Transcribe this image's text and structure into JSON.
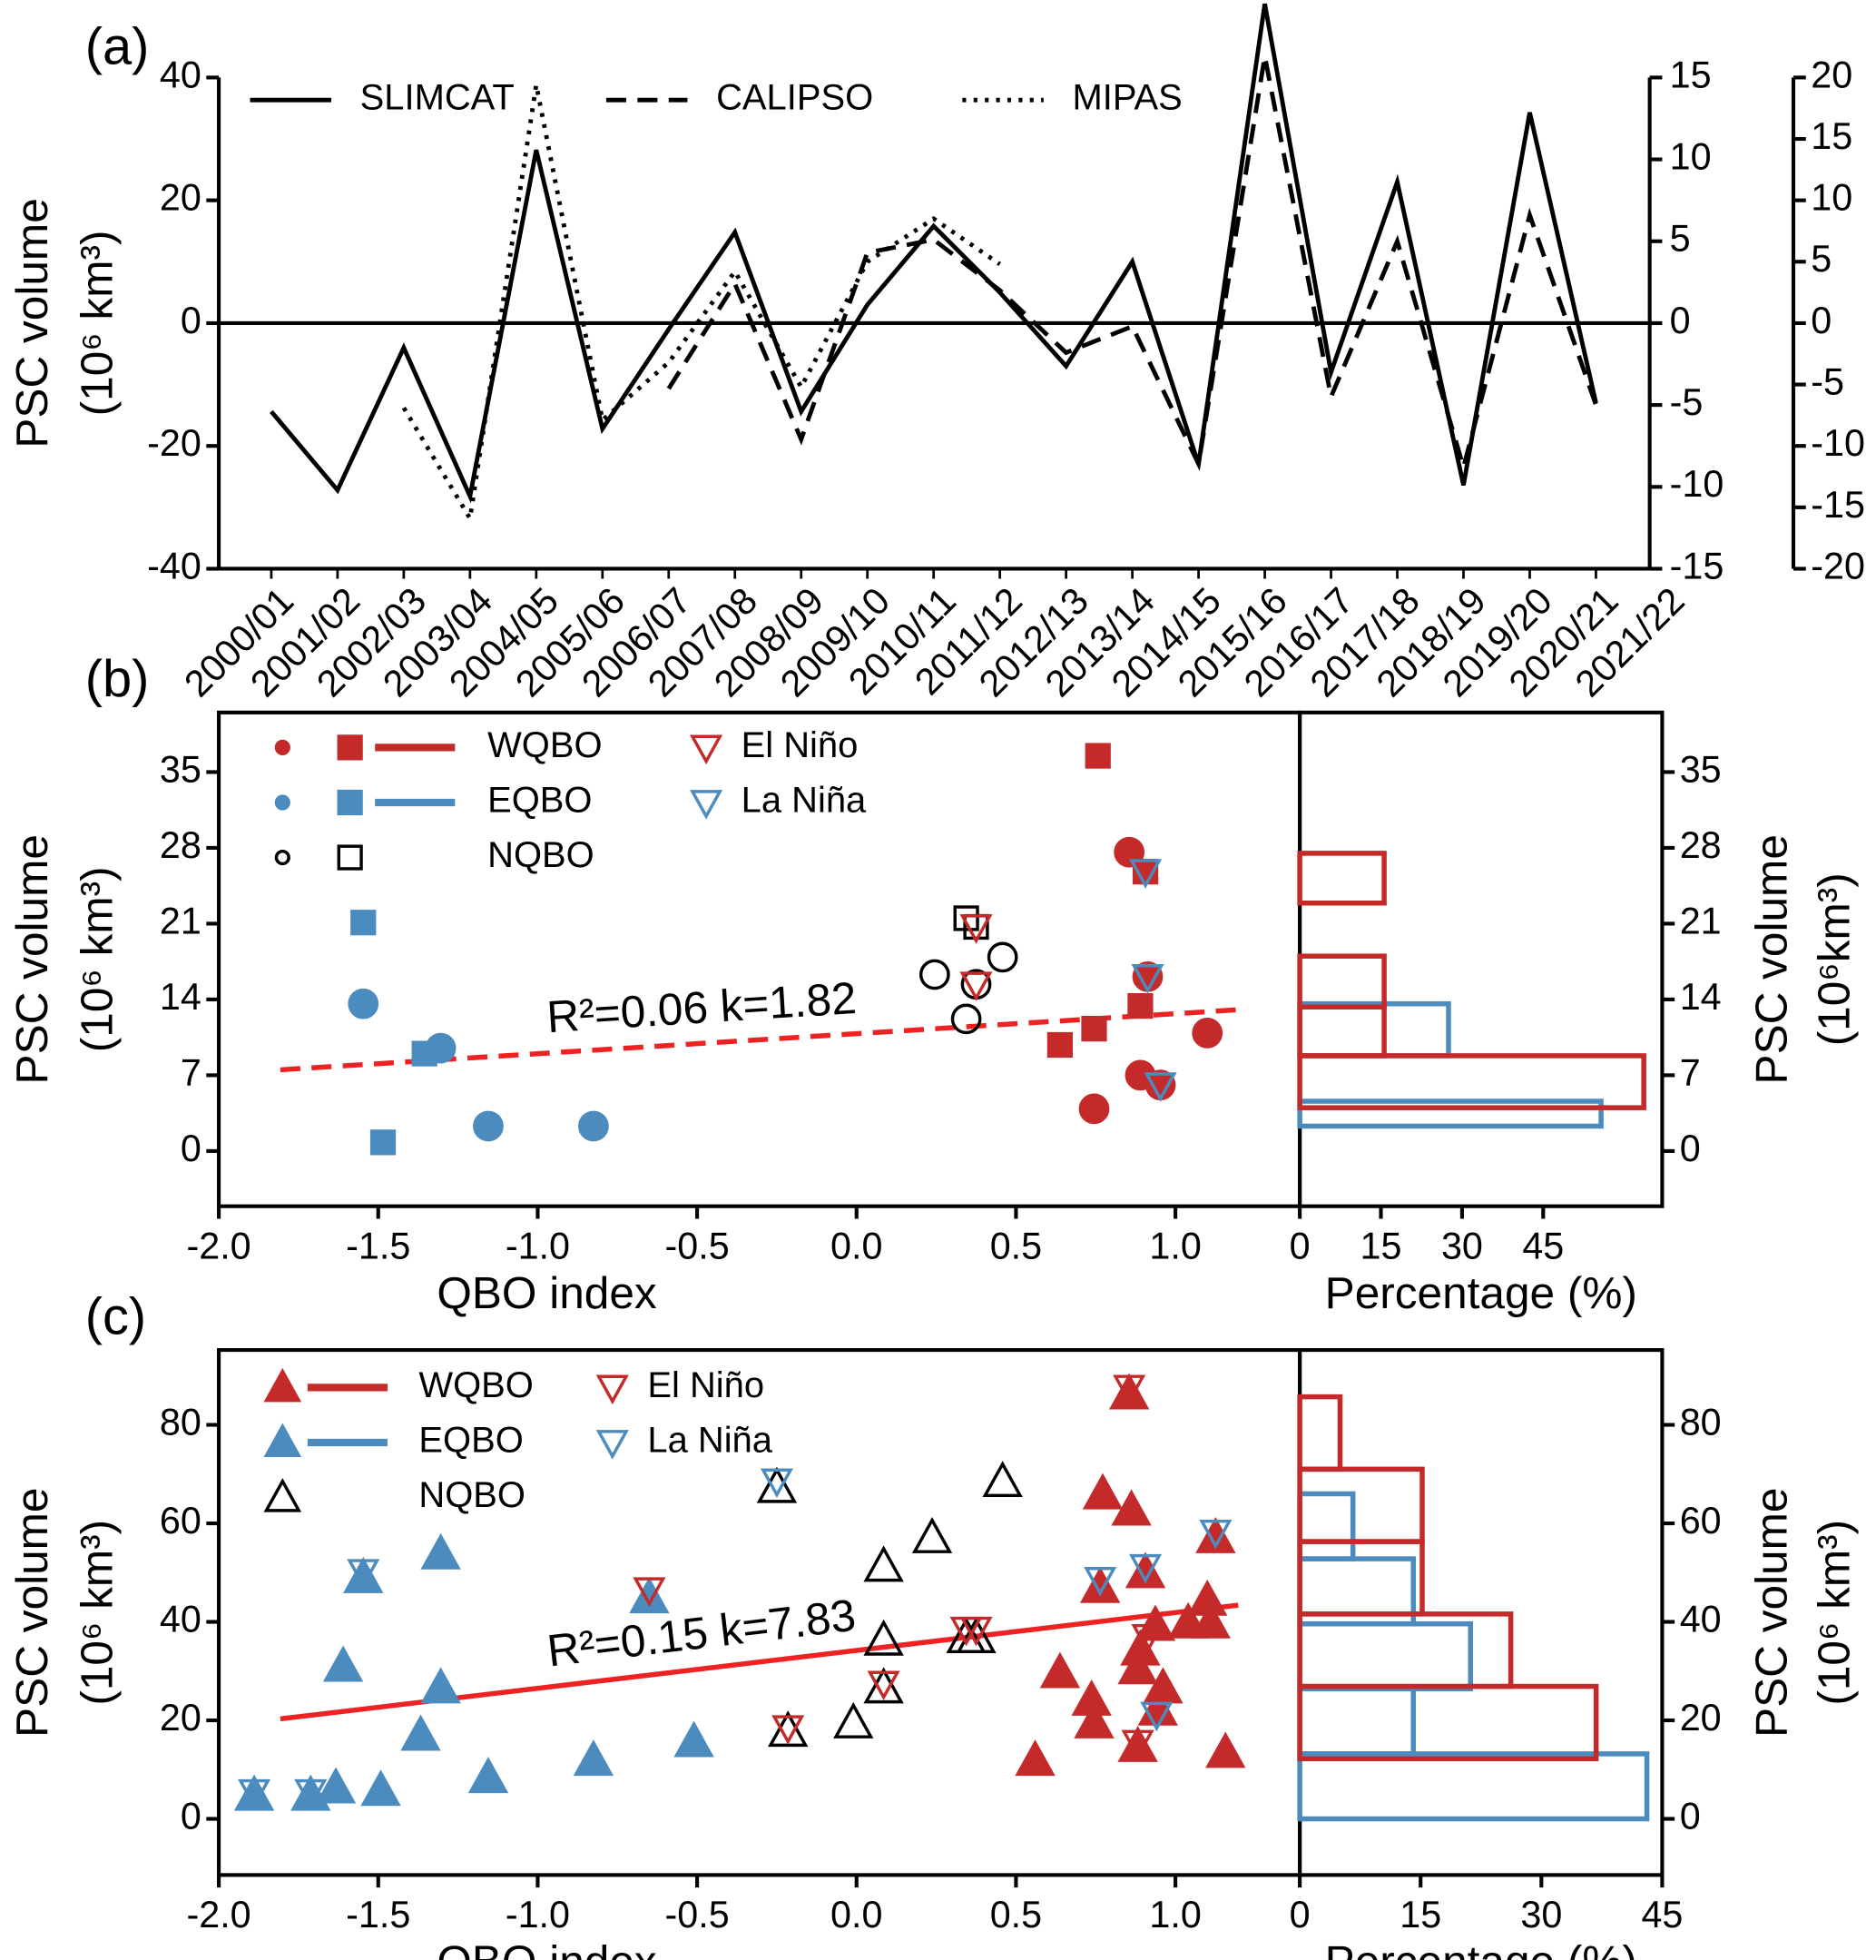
{
  "chart_data": [
    {
      "type": "line",
      "panel_label": "(a)",
      "ylabel": [
        "PSC volume",
        "(10⁶ km³)"
      ],
      "categories": [
        "2000/01",
        "2001/02",
        "2002/03",
        "2003/04",
        "2004/05",
        "2005/06",
        "2006/07",
        "2007/08",
        "2008/09",
        "2009/10",
        "2010/11",
        "2011/12",
        "2012/13",
        "2013/14",
        "2014/15",
        "2015/16",
        "2016/17",
        "2017/18",
        "2018/19",
        "2019/20",
        "2020/21",
        "2021/22"
      ],
      "category_colors": [
        "#000000",
        "#4b8bbe",
        "#c52a2a",
        "#4b8bbe",
        "#c52a2a",
        "#4b8bbe",
        "#c52a2a",
        "#4b8bbe",
        "#c52a2a",
        "#000000",
        "#c52a2a",
        "#000000",
        "#4b8bbe",
        "#c52a2a",
        "#4b8bbe",
        "#c52a2a",
        "#c52a2a",
        "#000000",
        "#4b8bbe",
        "#000000",
        "#c52a2a",
        "#000000"
      ],
      "ylim": [
        -40,
        40
      ],
      "yticks": [
        -40,
        -20,
        0,
        20,
        40
      ],
      "y2lim": [
        -15,
        15
      ],
      "y2ticks": [
        -15,
        -10,
        -5,
        0,
        5,
        10,
        15
      ],
      "y3lim": [
        -20,
        20
      ],
      "y3ticks": [
        -20,
        -15,
        -10,
        -5,
        0,
        5,
        10,
        15,
        20
      ],
      "zero_line": true,
      "series": [
        {
          "name": "SLIMCAT",
          "color": "#000000",
          "dash": "solid",
          "values": [
            -14.4,
            -27.2,
            -4,
            -28.2,
            28.2,
            -17.2,
            -1,
            14.8,
            -14.4,
            3,
            15.8,
            5,
            -7,
            10,
            -23,
            52,
            -8,
            23,
            -26.4,
            34.3,
            -13,
            null
          ]
        },
        {
          "name": "CALIPSO",
          "color": "#000000",
          "dash": "dashed",
          "axis": "y2",
          "values": [
            null,
            null,
            null,
            null,
            null,
            null,
            -4,
            2.4,
            -7.1,
            4.3,
            5.1,
            2,
            -1.8,
            -0.2,
            -8.6,
            16.3,
            -4.5,
            5,
            -8.8,
            6.6,
            -5,
            null
          ]
        },
        {
          "name": "MIPAS",
          "color": "#000000",
          "dash": "dotted",
          "axis": "y3",
          "values": [
            null,
            null,
            -6.9,
            -15.9,
            19.4,
            -7.9,
            -3.2,
            4.2,
            -5.2,
            5,
            8.5,
            4.8,
            null,
            null,
            null,
            null,
            null,
            null,
            null,
            null,
            null,
            null
          ]
        }
      ]
    },
    {
      "type": "scatter",
      "panel_label": "(b)",
      "xlabel": "QBO index",
      "ylabel": [
        "PSC volume",
        "(10⁶ km³)"
      ],
      "y2label": [
        "PSC volume",
        "(10⁶km³)"
      ],
      "xlim": [
        -2,
        1.39
      ],
      "xticks": [
        {
          "value": -2,
          "label": "-2.0"
        },
        -1.5,
        {
          "value": -1,
          "label": "-1.0"
        },
        -0.5,
        {
          "value": 0,
          "label": "0.0"
        },
        0.5,
        {
          "value": 1,
          "label": "1.0"
        }
      ],
      "ylim": [
        -5.1,
        40.5
      ],
      "yticks": [
        0,
        7,
        14,
        21,
        28,
        35
      ],
      "series": [
        {
          "name": "WQBO",
          "color": "#c52a2a",
          "filled": true,
          "legend_line": true,
          "markers": {
            "circle": {
              "x": [
                0.855,
                0.913,
                1.1,
                0.89,
                0.953,
                0.745
              ],
              "y": [
                27.6,
                16.1,
                10.9,
                7.0,
                6.1,
                3.9
              ]
            },
            "square": {
              "x": [
                0.757,
                0.906,
                0.89,
                0.745,
                0.638
              ],
              "y": [
                36.5,
                25.8,
                13.4,
                11.3,
                9.8
              ]
            }
          }
        },
        {
          "name": "EQBO",
          "color": "#4b8bbe",
          "filled": true,
          "legend_line": true,
          "markers": {
            "circle": {
              "x": [
                -1.547,
                -1.304,
                -1.155,
                -0.825
              ],
              "y": [
                13.6,
                9.5,
                2.3,
                2.3
              ]
            },
            "square": {
              "x": [
                -1.547,
                -1.355,
                -1.485
              ],
              "y": [
                21.1,
                9.0,
                0.8
              ]
            }
          }
        },
        {
          "name": "NQBO",
          "color": "#000000",
          "filled": false,
          "legend_line": false,
          "markers": {
            "circle": {
              "x": [
                0.245,
                0.458,
                0.375,
                0.344
              ],
              "y": [
                16.3,
                17.9,
                15.4,
                12.2
              ]
            },
            "square": {
              "x": [
                0.344,
                0.375
              ],
              "y": [
                21.5,
                20.7
              ]
            }
          }
        },
        {
          "name": "El Niño",
          "color": "#c52a2a",
          "filled": false,
          "legend_line": false,
          "markers": {
            "triangle_down": {
              "x": [
                0.375,
                0.375
              ],
              "y": [
                20.7,
                15.4
              ]
            }
          }
        },
        {
          "name": "La Niña",
          "color": "#4b8bbe",
          "filled": false,
          "legend_line": false,
          "markers": {
            "triangle_down": {
              "x": [
                0.906,
                0.913,
                0.953
              ],
              "y": [
                25.8,
                16.1,
                6.1
              ]
            }
          }
        }
      ],
      "fit": {
        "label": "R²=0.06  k=1.82",
        "color": "#ee2222",
        "dashed": true,
        "x": [
          -1.807,
          1.197
        ],
        "y": [
          7.5,
          13.05
        ]
      },
      "histogram": {
        "xlabel": "Percentage (%)",
        "xlim": [
          0,
          67
        ],
        "xticks": [
          0,
          15,
          30,
          45
        ],
        "series": [
          {
            "color": "#4b8bbe",
            "bins": [
              2.3,
              4.6,
              8.8,
              13.6
            ],
            "counts": [
              55.7,
              0,
              27.5
            ]
          },
          {
            "color": "#c52a2a",
            "bins": [
              4.0,
              8.8,
              13.3,
              18.0,
              22.9,
              27.5
            ],
            "counts": [
              63.6,
              15.6,
              15.6,
              0,
              15.6
            ]
          }
        ]
      }
    },
    {
      "type": "scatter",
      "panel_label": "(c)",
      "xlabel": "QBO index",
      "ylabel": [
        "PSC volume",
        "(10⁶ km³)"
      ],
      "y2label": [
        "PSC volume",
        "(10⁶ km³)"
      ],
      "xlim": [
        -2,
        1.39
      ],
      "xticks": [
        {
          "value": -2,
          "label": "-2.0"
        },
        -1.5,
        {
          "value": -1,
          "label": "-1.0"
        },
        -0.5,
        {
          "value": 0,
          "label": "0.0"
        },
        0.5,
        {
          "value": 1,
          "label": "1.0"
        }
      ],
      "ylim": [
        -11.4,
        95.2
      ],
      "yticks": [
        0,
        20,
        40,
        60,
        80
      ],
      "series": [
        {
          "name": "WQBO",
          "color": "#c52a2a",
          "filled": true,
          "legend_line": true,
          "markers": {
            "triangle_up": {
              "x": [
                0.855,
                0.772,
                0.862,
                0.764,
                0.906,
                0.937,
                0.89,
                0.882,
                0.961,
                0.945,
                0.638,
                0.737,
                0.745,
                0.56,
                0.882,
                1.04,
                1.1,
                1.11,
                1.126,
                1.157
              ],
              "y": [
                86.3,
                66,
                62.7,
                47,
                50,
                39.3,
                34.3,
                30.5,
                26.6,
                22.1,
                29.7,
                24.1,
                19.5,
                11.9,
                14.7,
                39.8,
                44.4,
                39.8,
                57.1,
                13.5
              ]
            }
          }
        },
        {
          "name": "EQBO",
          "color": "#4b8bbe",
          "filled": true,
          "legend_line": true,
          "markers": {
            "triangle_up": {
              "x": [
                -1.889,
                -1.712,
                -1.633,
                -1.492,
                -1.155,
                -0.825,
                -0.51,
                -1.367,
                -1.304,
                -1.61,
                -1.547,
                -1.304,
                -0.65
              ],
              "y": [
                4.8,
                4.8,
                6.3,
                5.8,
                8.4,
                11.9,
                15.7,
                17,
                26.6,
                31,
                49,
                53.8,
                44.9
              ]
            }
          }
        },
        {
          "name": "NQBO",
          "color": "#000000",
          "filled": false,
          "legend_line": false,
          "markers": {
            "triangle_up": {
              "x": [
                -0.25,
                -0.215,
                -0.01,
                0.085,
                0.085,
                0.085,
                0.237,
                0.458,
                0.344,
                0.375
              ],
              "y": [
                67.3,
                17.8,
                19.5,
                36.3,
                51.3,
                26.6,
                57.1,
                68.5,
                36.8,
                36.8
              ]
            }
          }
        },
        {
          "name": "El Niño",
          "color": "#c52a2a",
          "filled": false,
          "legend_line": false,
          "markers": {
            "triangle_down": {
              "x": [
                -0.65,
                -0.215,
                0.085,
                0.344,
                0.375,
                0.855,
                0.882,
                0.913
              ],
              "y": [
                46.5,
                18.5,
                27.5,
                38.5,
                38.5,
                87.6,
                15.5,
                37
              ]
            }
          }
        },
        {
          "name": "La Niña",
          "color": "#4b8bbe",
          "filled": false,
          "legend_line": false,
          "markers": {
            "triangle_down": {
              "x": [
                -1.889,
                -1.712,
                -1.547,
                -0.25,
                0.764,
                0.906,
                0.941,
                1.126
              ],
              "y": [
                5.5,
                5.5,
                50.2,
                68.6,
                48.6,
                51.2,
                21.2,
                58.2
              ]
            }
          }
        }
      ],
      "fit": {
        "label": "R²=0.15  k=7.83",
        "color": "#ee2222",
        "dashed": false,
        "x": [
          -1.807,
          1.197
        ],
        "y": [
          20.3,
          43.4
        ]
      },
      "histogram": {
        "xlabel": "Percentage (%)",
        "xlim": [
          0,
          45
        ],
        "xticks": [
          0,
          15,
          30,
          45
        ],
        "series": [
          {
            "color": "#4b8bbe",
            "bins": [
              0,
              13.2,
              26.4,
              39.6,
              52.8,
              66
            ],
            "counts": [
              43.1,
              14.1,
              21.2,
              14.1,
              6.6
            ]
          },
          {
            "color": "#c52a2a",
            "bins": [
              12.2,
              26.9,
              41.6,
              56.3,
              71.0,
              85.7
            ],
            "counts": [
              36.8,
              26.2,
              15.2,
              15.2,
              5
            ]
          }
        ]
      }
    }
  ]
}
